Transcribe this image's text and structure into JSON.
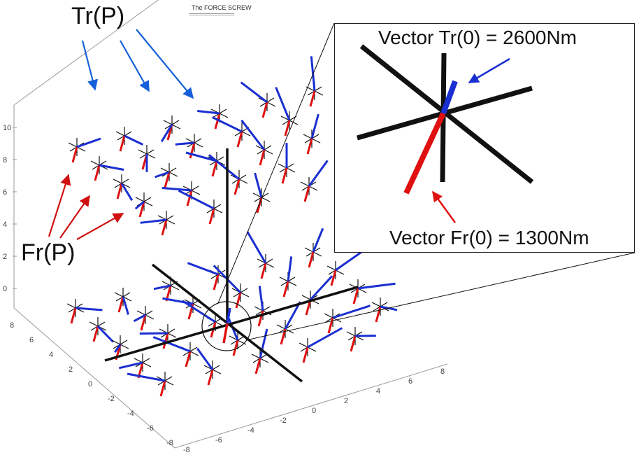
{
  "figure": {
    "title": "The FORCE SCREW",
    "title_underline": "=================",
    "label_torque": "Tr(P)",
    "label_force": "Fr(P)"
  },
  "inset": {
    "torque_label": "Vector Tr(0) = 2600Nm",
    "force_label": "Vector Fr(0) = 1300Nm"
  },
  "axes": {
    "z_ticks": [
      "10",
      "8",
      "6",
      "4",
      "2",
      "0"
    ],
    "y_ticks": [
      "8",
      "6",
      "4",
      "2",
      "0",
      "-2",
      "-4",
      "-6",
      "-8"
    ],
    "x_ticks": [
      "-8",
      "-6",
      "-4",
      "-2",
      "0",
      "2",
      "4",
      "6",
      "8"
    ]
  },
  "colors": {
    "torque": "#1a2fd0",
    "force": "#e01010",
    "axis": "#111111",
    "label_arrow_blue": "#1560d8",
    "label_arrow_red": "#d01010"
  }
}
